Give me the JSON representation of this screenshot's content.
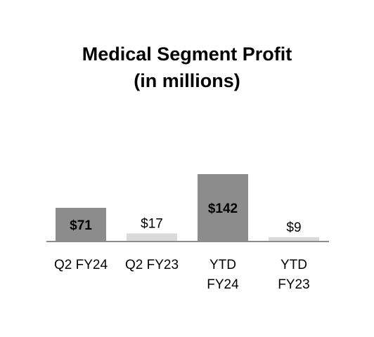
{
  "chart_data": {
    "type": "bar",
    "title": "Medical Segment Profit",
    "subtitle": "(in millions)",
    "categories": [
      "Q2 FY24",
      "Q2 FY23",
      "YTD FY24",
      "YTD FY23"
    ],
    "category_lines": [
      [
        "Q2 FY24"
      ],
      [
        "Q2 FY23"
      ],
      [
        "YTD",
        "FY24"
      ],
      [
        "YTD",
        "FY23"
      ]
    ],
    "values": [
      71,
      17,
      142,
      9
    ],
    "data_labels": [
      "$71",
      "$17",
      "$142",
      "$9"
    ],
    "bar_colors": [
      "#8c8c8c",
      "#d9d9d9",
      "#8c8c8c",
      "#d9d9d9"
    ],
    "label_bold": [
      true,
      false,
      true,
      false
    ],
    "label_inside": [
      true,
      false,
      true,
      false
    ],
    "ylim": [
      0,
      142
    ],
    "grid": false,
    "legend": "none",
    "axis_color": "#8c8c8c"
  }
}
